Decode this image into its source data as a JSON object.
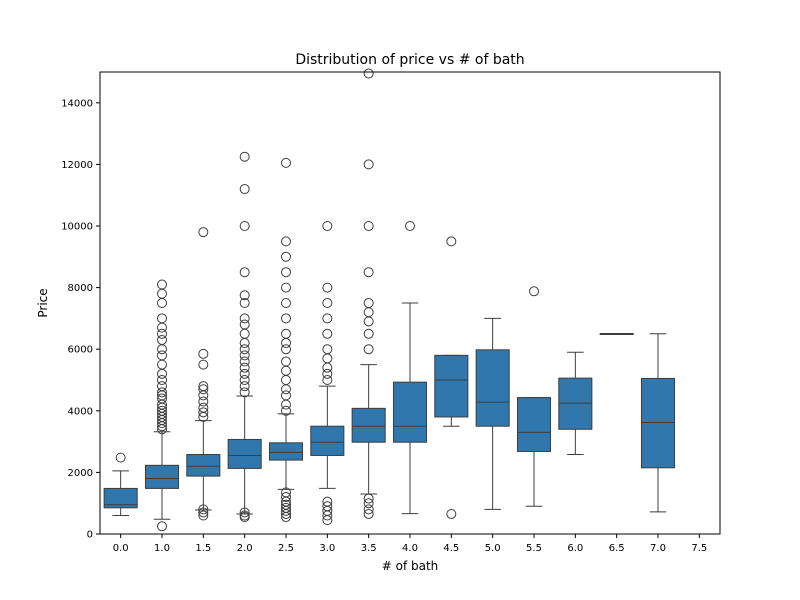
{
  "chart_data": {
    "type": "box",
    "title": "Distribution of price vs # of bath",
    "xlabel": "# of bath",
    "ylabel": "Price",
    "ylim": [
      0,
      15000
    ],
    "yticks": [
      0,
      2000,
      4000,
      6000,
      8000,
      10000,
      12000,
      14000
    ],
    "categories": [
      "0.0",
      "1.0",
      "1.5",
      "2.0",
      "2.5",
      "3.0",
      "3.5",
      "4.0",
      "4.5",
      "5.0",
      "5.5",
      "6.0",
      "6.5",
      "7.0",
      "7.5"
    ],
    "grid": false,
    "colors": {
      "box": "#2f77ad",
      "line": "#3d3d3d"
    },
    "boxes": [
      {
        "category": "0.0",
        "whisker_low": 600,
        "q1": 850,
        "median": 950,
        "q3": 1480,
        "whisker_high": 2050,
        "outliers": [
          2480
        ]
      },
      {
        "category": "1.0",
        "whisker_low": 480,
        "q1": 1480,
        "median": 1800,
        "q3": 2230,
        "whisker_high": 3320,
        "outliers": [
          250,
          3400,
          3500,
          3600,
          3700,
          3800,
          3900,
          4000,
          4100,
          4200,
          4400,
          4500,
          4600,
          4800,
          5000,
          5200,
          5500,
          5800,
          6000,
          6300,
          6500,
          6700,
          7000,
          7500,
          7800,
          8100
        ]
      },
      {
        "category": "1.5",
        "whisker_low": 780,
        "q1": 1880,
        "median": 2200,
        "q3": 2580,
        "whisker_high": 3680,
        "outliers": [
          600,
          700,
          800,
          3800,
          3950,
          4100,
          4300,
          4500,
          4700,
          4800,
          5500,
          5850,
          9800
        ]
      },
      {
        "category": "2.0",
        "whisker_low": 650,
        "q1": 2130,
        "median": 2550,
        "q3": 3070,
        "whisker_high": 4480,
        "outliers": [
          550,
          600,
          700,
          4600,
          4800,
          5000,
          5200,
          5400,
          5600,
          5800,
          6000,
          6200,
          6500,
          6800,
          7000,
          7500,
          7750,
          8500,
          10000,
          11200,
          12250
        ]
      },
      {
        "category": "2.5",
        "whisker_low": 1450,
        "q1": 2400,
        "median": 2650,
        "q3": 2960,
        "whisker_high": 3900,
        "outliers": [
          550,
          650,
          750,
          850,
          950,
          1050,
          1200,
          1350,
          4000,
          4200,
          4500,
          4700,
          5000,
          5300,
          5600,
          6000,
          6200,
          6500,
          7000,
          7500,
          8000,
          8500,
          9000,
          9500,
          12050
        ]
      },
      {
        "category": "3.0",
        "whisker_low": 1480,
        "q1": 2550,
        "median": 2980,
        "q3": 3500,
        "whisker_high": 4800,
        "outliers": [
          450,
          600,
          750,
          900,
          1050,
          5000,
          5200,
          5400,
          5700,
          6000,
          6500,
          7000,
          7500,
          8000,
          10000
        ]
      },
      {
        "category": "3.5",
        "whisker_low": 1300,
        "q1": 2980,
        "median": 3500,
        "q3": 4080,
        "whisker_high": 5500,
        "outliers": [
          650,
          800,
          1000,
          1150,
          6000,
          6500,
          6900,
          7200,
          7500,
          8500,
          10000,
          12000,
          14950
        ]
      },
      {
        "category": "4.0",
        "whisker_low": 660,
        "q1": 2980,
        "median": 3500,
        "q3": 4930,
        "whisker_high": 7500,
        "outliers": [
          10000
        ]
      },
      {
        "category": "4.5",
        "whisker_low": 3500,
        "q1": 3800,
        "median": 5000,
        "q3": 5800,
        "whisker_high": 5800,
        "outliers": [
          650,
          9500
        ]
      },
      {
        "category": "5.0",
        "whisker_low": 800,
        "q1": 3500,
        "median": 4280,
        "q3": 5980,
        "whisker_high": 7000,
        "outliers": []
      },
      {
        "category": "5.5",
        "whisker_low": 900,
        "q1": 2680,
        "median": 3300,
        "q3": 4430,
        "whisker_high": 4430,
        "outliers": [
          7880
        ]
      },
      {
        "category": "6.0",
        "whisker_low": 2580,
        "q1": 3400,
        "median": 4250,
        "q3": 5060,
        "whisker_high": 5900,
        "outliers": []
      },
      {
        "category": "6.5",
        "whisker_low": 6490,
        "q1": 6490,
        "median": 6490,
        "q3": 6510,
        "whisker_high": 6510,
        "outliers": []
      },
      {
        "category": "7.0",
        "whisker_low": 720,
        "q1": 2150,
        "median": 3620,
        "q3": 5050,
        "whisker_high": 6500,
        "outliers": []
      },
      {
        "category": "7.5",
        "whisker_low": null,
        "q1": null,
        "median": null,
        "q3": null,
        "whisker_high": null,
        "outliers": []
      }
    ]
  }
}
